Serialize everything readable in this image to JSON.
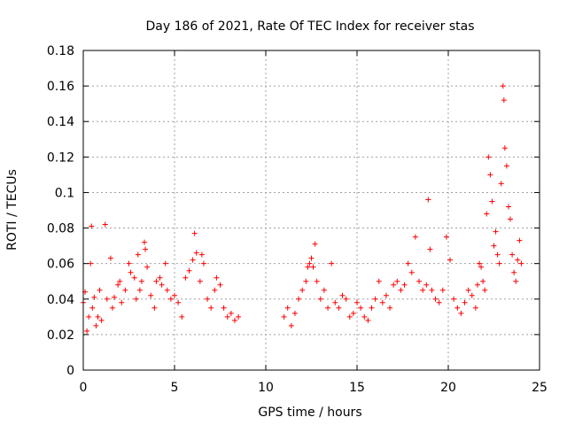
{
  "chart_data": {
    "type": "scatter",
    "title": "Day 186 of 2021, Rate Of TEC Index for receiver stas",
    "xlabel": "GPS time / hours",
    "ylabel": "ROTI / TECUs",
    "xlim": [
      0,
      25
    ],
    "ylim": [
      0,
      0.18
    ],
    "xticks": [
      0,
      5,
      10,
      15,
      20,
      25
    ],
    "xtick_labels": [
      "0",
      "5",
      "10",
      "15",
      "20",
      "25"
    ],
    "yticks": [
      0,
      0.02,
      0.04,
      0.06,
      0.08,
      0.1,
      0.12,
      0.14,
      0.16,
      0.18
    ],
    "ytick_labels": [
      "0",
      "0.02",
      "0.04",
      "0.06",
      "0.08",
      "0.1",
      "0.12",
      "0.14",
      "0.16",
      "0.18"
    ],
    "grid": true,
    "marker": "+",
    "color": "#ff0000",
    "series": [
      {
        "name": "ROTI",
        "points": [
          [
            0.0,
            0.038
          ],
          [
            0.1,
            0.044
          ],
          [
            0.2,
            0.022
          ],
          [
            0.3,
            0.03
          ],
          [
            0.4,
            0.06
          ],
          [
            0.45,
            0.081
          ],
          [
            0.5,
            0.035
          ],
          [
            0.6,
            0.041
          ],
          [
            0.7,
            0.025
          ],
          [
            0.8,
            0.03
          ],
          [
            0.9,
            0.045
          ],
          [
            1.0,
            0.028
          ],
          [
            1.2,
            0.082
          ],
          [
            1.3,
            0.04
          ],
          [
            1.5,
            0.063
          ],
          [
            1.6,
            0.035
          ],
          [
            1.7,
            0.041
          ],
          [
            1.9,
            0.048
          ],
          [
            2.0,
            0.05
          ],
          [
            2.1,
            0.038
          ],
          [
            2.3,
            0.045
          ],
          [
            2.5,
            0.06
          ],
          [
            2.6,
            0.055
          ],
          [
            2.8,
            0.052
          ],
          [
            2.9,
            0.04
          ],
          [
            3.0,
            0.065
          ],
          [
            3.1,
            0.045
          ],
          [
            3.2,
            0.05
          ],
          [
            3.35,
            0.072
          ],
          [
            3.4,
            0.068
          ],
          [
            3.5,
            0.058
          ],
          [
            3.7,
            0.042
          ],
          [
            3.9,
            0.035
          ],
          [
            4.0,
            0.05
          ],
          [
            4.2,
            0.052
          ],
          [
            4.3,
            0.048
          ],
          [
            4.5,
            0.06
          ],
          [
            4.6,
            0.045
          ],
          [
            4.8,
            0.04
          ],
          [
            5.0,
            0.042
          ],
          [
            5.2,
            0.038
          ],
          [
            5.4,
            0.03
          ],
          [
            5.6,
            0.052
          ],
          [
            5.8,
            0.056
          ],
          [
            6.0,
            0.062
          ],
          [
            6.1,
            0.077
          ],
          [
            6.2,
            0.066
          ],
          [
            6.4,
            0.05
          ],
          [
            6.5,
            0.065
          ],
          [
            6.6,
            0.06
          ],
          [
            6.8,
            0.04
          ],
          [
            7.0,
            0.035
          ],
          [
            7.2,
            0.045
          ],
          [
            7.3,
            0.052
          ],
          [
            7.5,
            0.048
          ],
          [
            7.7,
            0.035
          ],
          [
            7.9,
            0.03
          ],
          [
            8.1,
            0.032
          ],
          [
            8.3,
            0.028
          ],
          [
            8.5,
            0.03
          ],
          [
            11.0,
            0.03
          ],
          [
            11.2,
            0.035
          ],
          [
            11.4,
            0.025
          ],
          [
            11.6,
            0.032
          ],
          [
            11.8,
            0.04
          ],
          [
            12.0,
            0.045
          ],
          [
            12.2,
            0.05
          ],
          [
            12.3,
            0.058
          ],
          [
            12.4,
            0.06
          ],
          [
            12.5,
            0.063
          ],
          [
            12.6,
            0.058
          ],
          [
            12.7,
            0.071
          ],
          [
            12.8,
            0.05
          ],
          [
            13.0,
            0.04
          ],
          [
            13.2,
            0.045
          ],
          [
            13.4,
            0.035
          ],
          [
            13.6,
            0.06
          ],
          [
            13.8,
            0.038
          ],
          [
            14.0,
            0.035
          ],
          [
            14.2,
            0.042
          ],
          [
            14.4,
            0.04
          ],
          [
            14.6,
            0.03
          ],
          [
            14.8,
            0.032
          ],
          [
            15.0,
            0.038
          ],
          [
            15.2,
            0.035
          ],
          [
            15.4,
            0.03
          ],
          [
            15.6,
            0.028
          ],
          [
            15.8,
            0.035
          ],
          [
            16.0,
            0.04
          ],
          [
            16.2,
            0.05
          ],
          [
            16.4,
            0.038
          ],
          [
            16.6,
            0.042
          ],
          [
            16.8,
            0.035
          ],
          [
            17.0,
            0.048
          ],
          [
            17.2,
            0.05
          ],
          [
            17.4,
            0.045
          ],
          [
            17.6,
            0.048
          ],
          [
            17.8,
            0.06
          ],
          [
            18.0,
            0.055
          ],
          [
            18.2,
            0.075
          ],
          [
            18.4,
            0.05
          ],
          [
            18.6,
            0.045
          ],
          [
            18.8,
            0.048
          ],
          [
            18.9,
            0.096
          ],
          [
            19.0,
            0.068
          ],
          [
            19.1,
            0.045
          ],
          [
            19.3,
            0.04
          ],
          [
            19.5,
            0.038
          ],
          [
            19.7,
            0.045
          ],
          [
            19.9,
            0.075
          ],
          [
            20.1,
            0.062
          ],
          [
            20.3,
            0.04
          ],
          [
            20.5,
            0.035
          ],
          [
            20.7,
            0.032
          ],
          [
            20.9,
            0.038
          ],
          [
            21.1,
            0.045
          ],
          [
            21.3,
            0.042
          ],
          [
            21.5,
            0.035
          ],
          [
            21.6,
            0.048
          ],
          [
            21.7,
            0.06
          ],
          [
            21.8,
            0.058
          ],
          [
            21.9,
            0.05
          ],
          [
            22.0,
            0.045
          ],
          [
            22.1,
            0.088
          ],
          [
            22.2,
            0.12
          ],
          [
            22.3,
            0.11
          ],
          [
            22.4,
            0.095
          ],
          [
            22.5,
            0.07
          ],
          [
            22.6,
            0.078
          ],
          [
            22.7,
            0.065
          ],
          [
            22.8,
            0.06
          ],
          [
            22.9,
            0.105
          ],
          [
            23.0,
            0.16
          ],
          [
            23.05,
            0.152
          ],
          [
            23.1,
            0.125
          ],
          [
            23.2,
            0.115
          ],
          [
            23.3,
            0.092
          ],
          [
            23.4,
            0.085
          ],
          [
            23.5,
            0.065
          ],
          [
            23.6,
            0.055
          ],
          [
            23.7,
            0.05
          ],
          [
            23.8,
            0.062
          ],
          [
            23.9,
            0.073
          ],
          [
            24.0,
            0.06
          ]
        ]
      }
    ]
  }
}
